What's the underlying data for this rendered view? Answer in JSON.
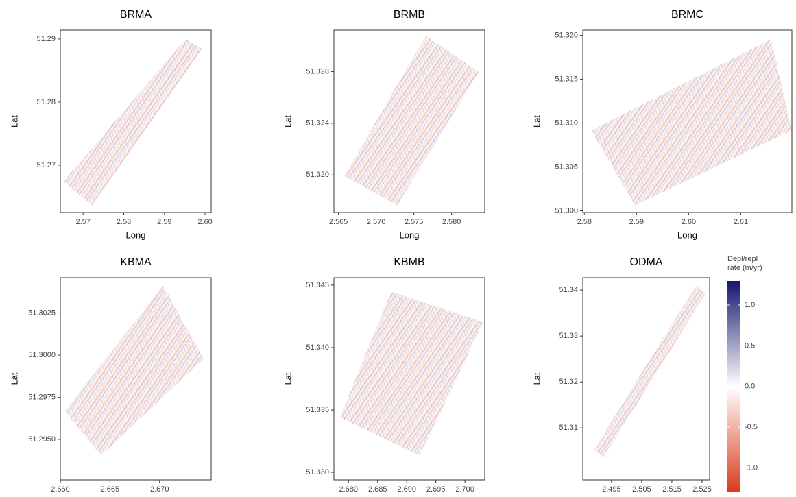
{
  "chart_data": [
    {
      "type": "raster",
      "title": "BRMA",
      "xlabel": "Long",
      "ylabel": "Lat",
      "xlim": [
        2.5644,
        2.6015
      ],
      "ylim": [
        51.2625,
        51.2914
      ],
      "xticks": [
        2.57,
        2.58,
        2.59,
        {
          "value": 2.6,
          "label": "2.60"
        }
      ],
      "yticks": [
        51.27,
        51.28,
        51.29
      ]
    },
    {
      "type": "raster",
      "title": "BRMB",
      "xlabel": "Long",
      "ylabel": "Lat",
      "xlim": [
        2.5644,
        2.5844
      ],
      "ylim": [
        51.3171,
        51.3312
      ],
      "xticks": [
        2.565,
        {
          "value": 2.57,
          "label": "2.570"
        },
        2.575,
        {
          "value": 2.58,
          "label": "2.580"
        }
      ],
      "yticks": [
        {
          "value": 51.32,
          "label": "51.320"
        },
        51.324,
        51.328
      ]
    },
    {
      "type": "raster",
      "title": "BRMC",
      "xlabel": "Long",
      "ylabel": "Lat",
      "xlim": [
        2.5797,
        2.6198
      ],
      "ylim": [
        51.2998,
        51.3206
      ],
      "xticks": [
        2.58,
        2.59,
        {
          "value": 2.6,
          "label": "2.60"
        },
        2.61
      ],
      "yticks": [
        {
          "value": 51.3,
          "label": "51.300"
        },
        51.305,
        {
          "value": 51.31,
          "label": "51.310"
        },
        51.315,
        {
          "value": 51.32,
          "label": "51.320"
        }
      ]
    },
    {
      "type": "raster",
      "title": "KBMA",
      "xlabel": "Long",
      "ylabel": "Lat",
      "xlim": [
        2.66,
        2.6752
      ],
      "ylim": [
        51.2926,
        51.3046
      ],
      "xticks": [
        {
          "value": 2.66,
          "label": "2.660"
        },
        2.665,
        {
          "value": 2.67,
          "label": "2.670"
        }
      ],
      "yticks": [
        {
          "value": 51.295,
          "label": "51.2950"
        },
        51.2975,
        {
          "value": 51.3,
          "label": "51.3000"
        },
        51.3025
      ]
    },
    {
      "type": "raster",
      "title": "KBMB",
      "xlabel": "Long",
      "ylabel": "Lat",
      "xlim": [
        2.6775,
        2.7034
      ],
      "ylim": [
        51.3294,
        51.3456
      ],
      "xticks": [
        {
          "value": 2.68,
          "label": "2.680"
        },
        2.685,
        {
          "value": 2.69,
          "label": "2.690"
        },
        2.695,
        {
          "value": 2.7,
          "label": "2.700"
        }
      ],
      "yticks": [
        {
          "value": 51.33,
          "label": "51.330"
        },
        51.335,
        {
          "value": 51.34,
          "label": "51.340"
        },
        51.345
      ]
    },
    {
      "type": "raster",
      "title": "ODMA",
      "xlabel": "Long",
      "ylabel": "Lat",
      "xlim": [
        2.4855,
        2.5275
      ],
      "ylim": [
        51.2987,
        51.3427
      ],
      "xticks": [
        2.495,
        2.505,
        2.515,
        2.525
      ],
      "yticks": [
        51.31,
        51.32,
        51.33,
        51.34
      ]
    }
  ],
  "colorbar": {
    "title": [
      "Depl/repl",
      "rate (m/yr)"
    ],
    "lim": [
      -1.3,
      1.295
    ],
    "colors": [
      "#d93a1c",
      "#ffffff",
      "#15156e"
    ],
    "ticks": [
      {
        "value": 1.0,
        "label": "1.0"
      },
      {
        "value": 0.5,
        "label": "0.5"
      },
      {
        "value": 0.0,
        "label": "0.0"
      },
      {
        "value": -0.5,
        "label": "-0.5"
      },
      {
        "value": -1.0,
        "label": "-1.0"
      }
    ]
  }
}
